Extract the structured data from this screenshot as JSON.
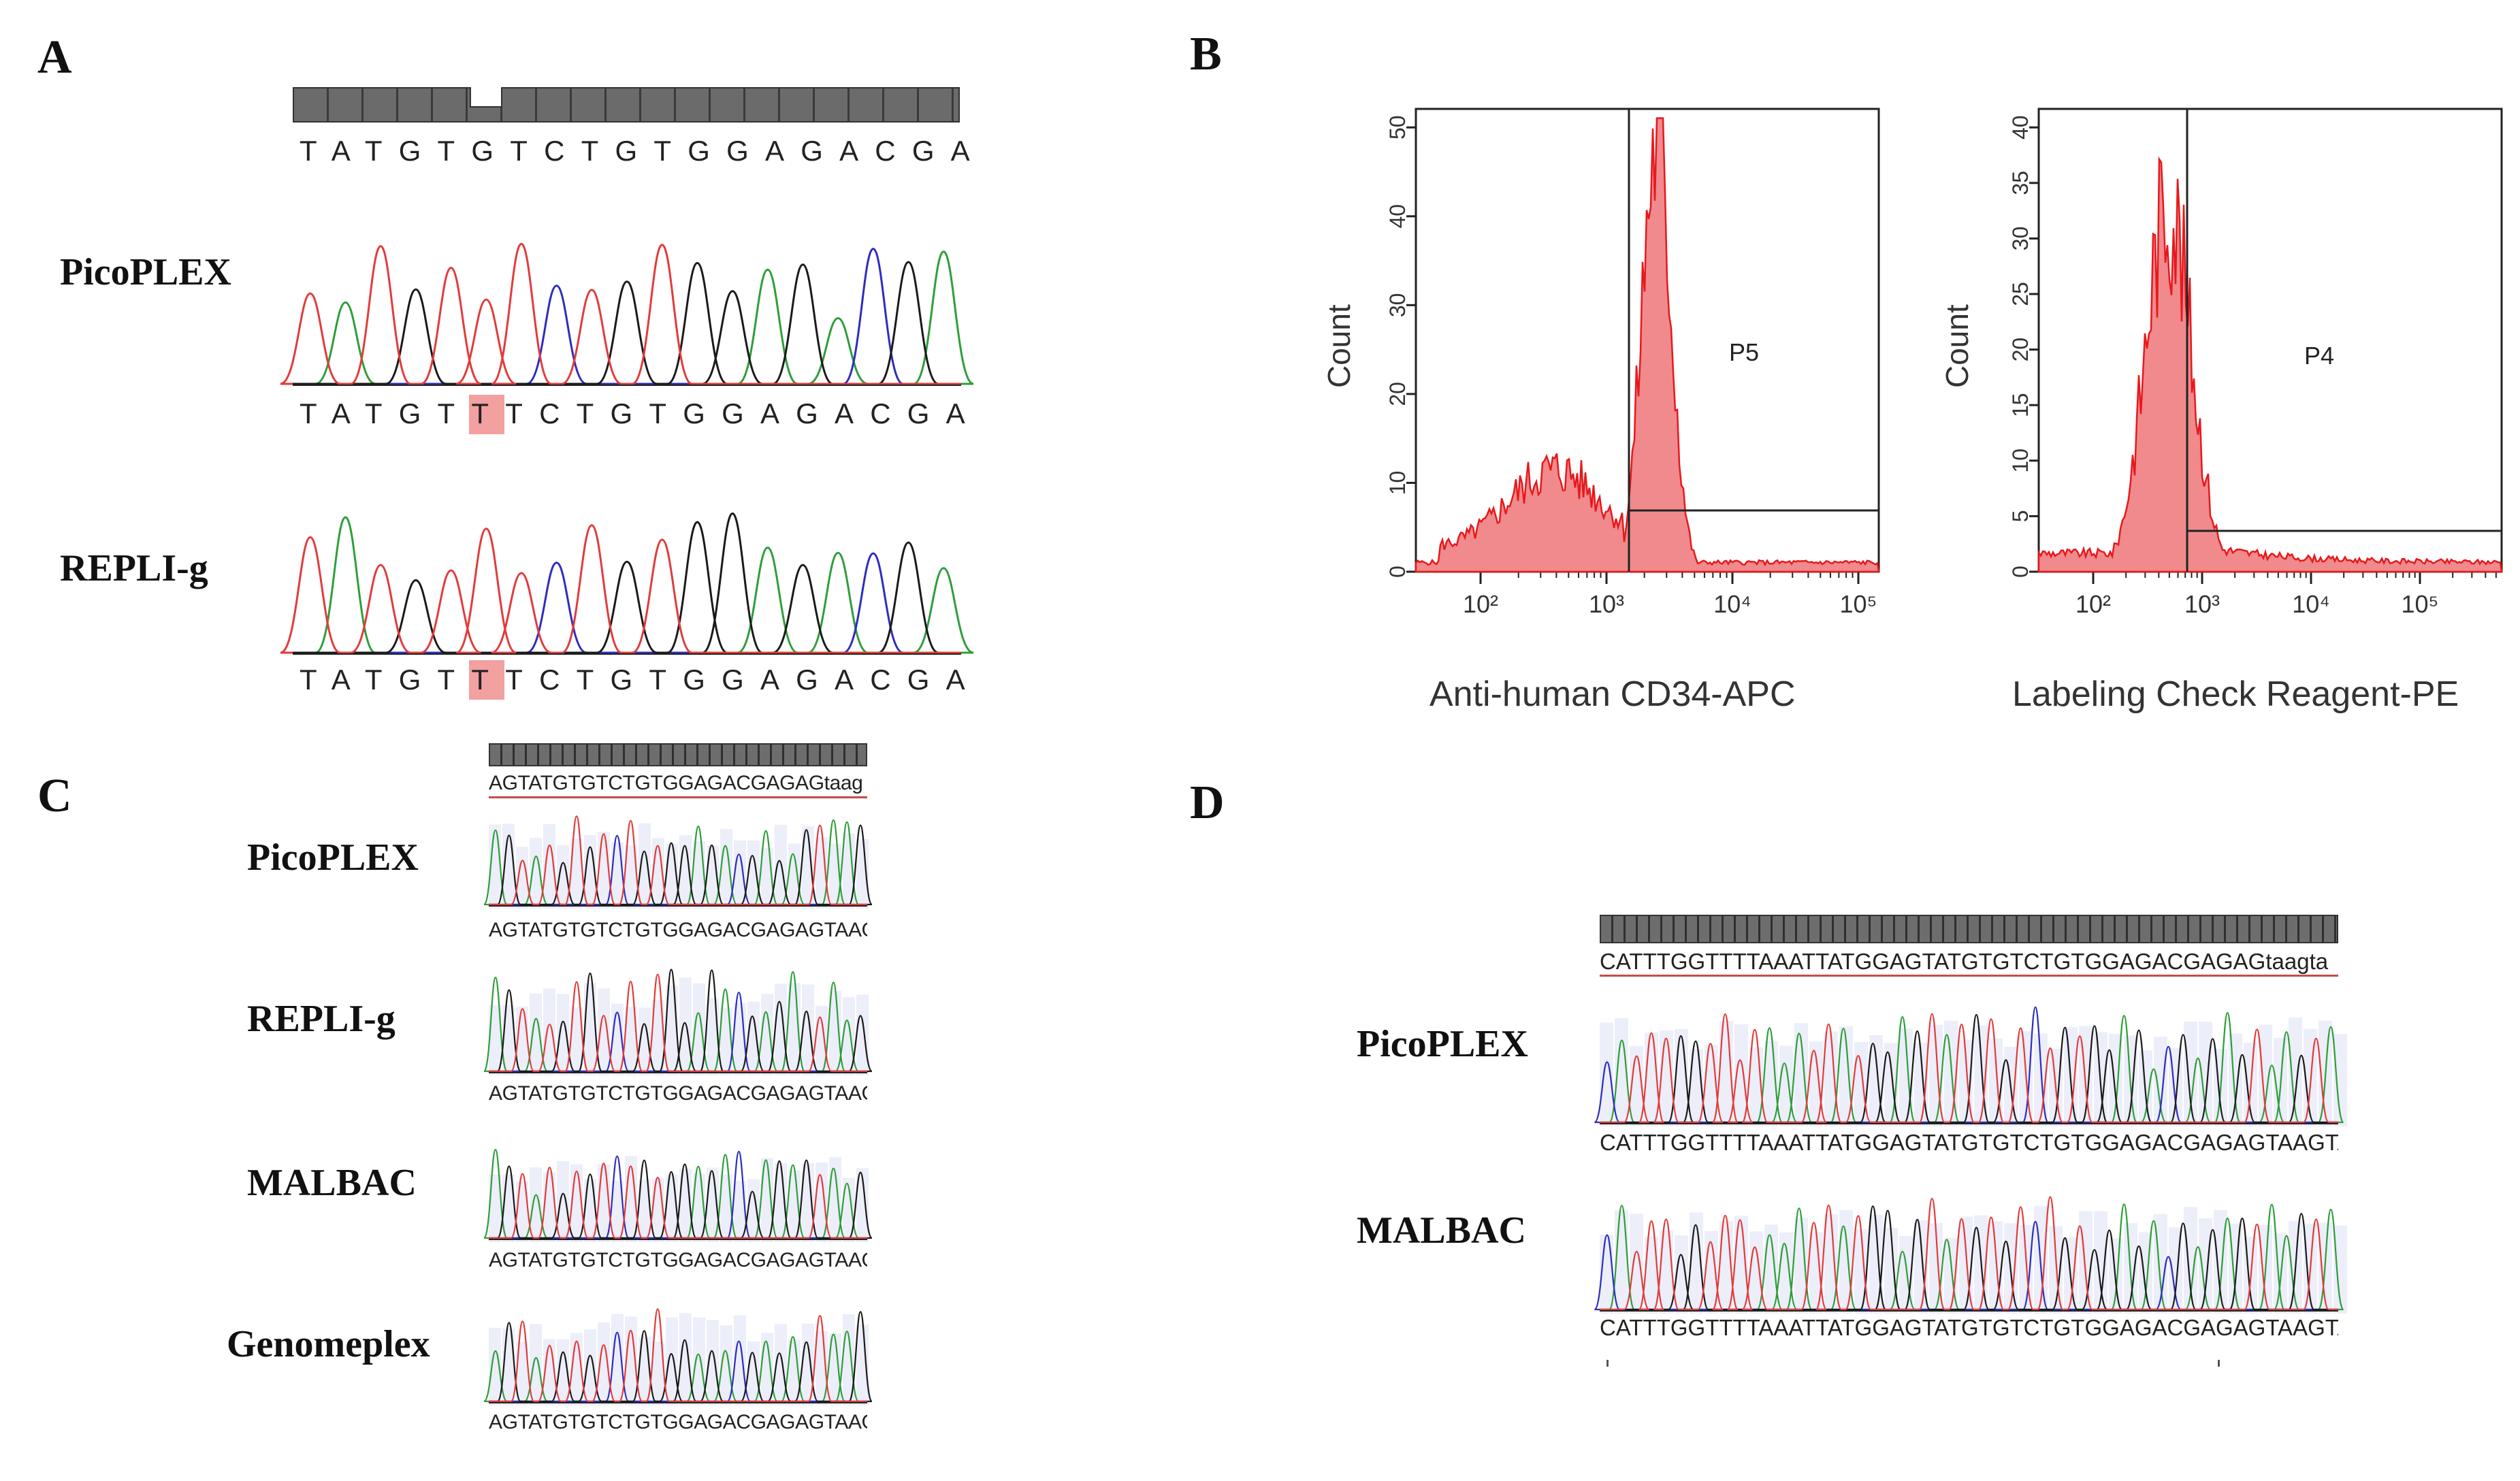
{
  "panel_a": {
    "letter": "A",
    "reference_sequence": "TATGTGTCTGTGGAGACGA",
    "rows": [
      {
        "label": "PicoPLEX",
        "sequence": "TATGTTTCTGTGGAGACGA",
        "highlight_index": 5
      },
      {
        "label": "REPLI-g",
        "sequence": "TATGTTTCTGTGGAGACGA",
        "highlight_index": 5
      }
    ]
  },
  "panel_b": {
    "letter": "B",
    "histograms": [
      {
        "name": "cd34",
        "xlabel": "Anti-human CD34-APC",
        "ylabel": "Count",
        "gate_label": "P5",
        "y_ticks": [
          "0",
          "10",
          "20",
          "30",
          "40",
          "50"
        ],
        "x_ticks": [
          "10²",
          "10³",
          "10⁴",
          "10⁵"
        ]
      },
      {
        "name": "labeling",
        "xlabel": "Labeling Check Reagent-PE",
        "ylabel": "Count",
        "gate_label": "P4",
        "y_ticks": [
          "0",
          "5",
          "10",
          "15",
          "20",
          "25",
          "30",
          "35",
          "40"
        ],
        "x_ticks": [
          "10²",
          "10³",
          "10⁴",
          "10⁵"
        ]
      }
    ]
  },
  "panel_c": {
    "letter": "C",
    "reference_sequence": "AGTATGTGTCTGTGGAGACGAGAGtaag",
    "rows": [
      {
        "label": "PicoPLEX",
        "sequence": "AGTATGTGTCTGTGGAGACGAGAGTAAG"
      },
      {
        "label": "REPLI-g",
        "sequence": "AGTATGTGTCTGTGGAGACGAGAGTAAG"
      },
      {
        "label": "MALBAC",
        "sequence": "AGTATGTGTCTGTGGAGACGAGAGTAAG"
      },
      {
        "label": "Genomeplex",
        "sequence": "AGTATGTGTCTGTGGAGACGAGAGTAAG"
      }
    ]
  },
  "panel_d": {
    "letter": "D",
    "reference_sequence": "CATTTGGTTTTAAATTATGGAGTATGTGTCTGTGGAGACGAGAGtaagta",
    "rows": [
      {
        "label": "PicoPLEX",
        "sequence": "CATTTGGTTTTAAATTATGGAGTATGTGTCTGTGGAGACGAGAGTAAGTA"
      },
      {
        "label": "MALBAC",
        "sequence": "CATTTGGTTTTAAATTATGGAGTATGTGTCTGTGGAGACGAGAGTAAGTA"
      }
    ]
  },
  "colors": {
    "A": "#2e9e3a",
    "C": "#2d2dbf",
    "G": "#1a1a1a",
    "T": "#e23b3b",
    "histogram": "#e8181c"
  }
}
